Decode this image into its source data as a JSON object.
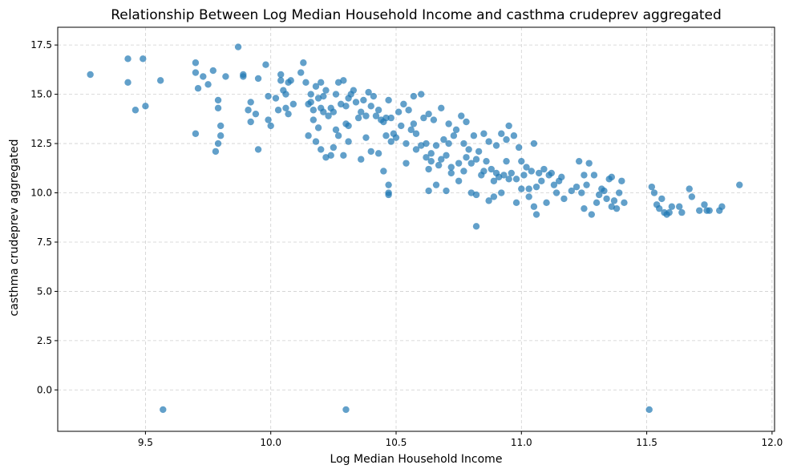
{
  "chart_data": {
    "type": "scatter",
    "title": "Relationship Between Log Median Household Income and casthma crudeprev aggregated",
    "xlabel": "Log Median Household Income",
    "ylabel": "casthma crudeprev aggregated",
    "xlim": [
      9.15,
      12.01
    ],
    "ylim": [
      -2.1,
      18.4
    ],
    "xticks": [
      9.5,
      10.0,
      10.5,
      11.0,
      11.5,
      12.0
    ],
    "xtick_labels": [
      "9.5",
      "10.0",
      "10.5",
      "11.0",
      "11.5",
      "12.0"
    ],
    "yticks": [
      0.0,
      2.5,
      5.0,
      7.5,
      10.0,
      12.5,
      15.0,
      17.5
    ],
    "ytick_labels": [
      "0.0",
      "2.5",
      "5.0",
      "7.5",
      "10.0",
      "12.5",
      "15.0",
      "17.5"
    ],
    "grid": true,
    "color": "#1f77b4",
    "points": [
      [
        9.28,
        16.0
      ],
      [
        9.43,
        16.8
      ],
      [
        9.49,
        16.8
      ],
      [
        9.43,
        15.6
      ],
      [
        9.46,
        14.2
      ],
      [
        9.5,
        14.4
      ],
      [
        9.56,
        15.7
      ],
      [
        9.57,
        -1.0
      ],
      [
        9.7,
        16.6
      ],
      [
        9.7,
        16.1
      ],
      [
        9.73,
        15.9
      ],
      [
        9.77,
        16.2
      ],
      [
        9.71,
        15.3
      ],
      [
        9.75,
        15.5
      ],
      [
        9.82,
        15.9
      ],
      [
        9.87,
        17.4
      ],
      [
        9.89,
        15.9
      ],
      [
        9.89,
        16.0
      ],
      [
        9.95,
        15.8
      ],
      [
        9.98,
        16.5
      ],
      [
        9.7,
        13.0
      ],
      [
        9.79,
        14.7
      ],
      [
        9.79,
        14.3
      ],
      [
        9.8,
        13.4
      ],
      [
        9.79,
        12.5
      ],
      [
        9.78,
        12.1
      ],
      [
        9.8,
        12.9
      ],
      [
        9.91,
        14.2
      ],
      [
        9.92,
        14.6
      ],
      [
        9.92,
        13.6
      ],
      [
        9.94,
        14.0
      ],
      [
        9.95,
        12.2
      ],
      [
        9.99,
        14.9
      ],
      [
        9.99,
        13.7
      ],
      [
        10.0,
        13.4
      ],
      [
        10.02,
        14.8
      ],
      [
        10.03,
        14.2
      ],
      [
        10.04,
        15.7
      ],
      [
        10.04,
        16.0
      ],
      [
        10.05,
        15.2
      ],
      [
        10.06,
        14.3
      ],
      [
        10.06,
        15.0
      ],
      [
        10.07,
        14.0
      ],
      [
        10.07,
        15.6
      ],
      [
        10.08,
        15.7
      ],
      [
        10.09,
        14.5
      ],
      [
        10.12,
        16.1
      ],
      [
        10.13,
        16.6
      ],
      [
        10.14,
        15.6
      ],
      [
        10.15,
        14.5
      ],
      [
        10.16,
        14.6
      ],
      [
        10.16,
        15.0
      ],
      [
        10.17,
        13.7
      ],
      [
        10.17,
        14.2
      ],
      [
        10.18,
        15.4
      ],
      [
        10.19,
        14.8
      ],
      [
        10.2,
        14.3
      ],
      [
        10.2,
        15.6
      ],
      [
        10.21,
        14.1
      ],
      [
        10.21,
        14.9
      ],
      [
        10.22,
        15.2
      ],
      [
        10.23,
        13.9
      ],
      [
        10.24,
        14.3
      ],
      [
        10.25,
        14.1
      ],
      [
        10.26,
        15.0
      ],
      [
        10.26,
        13.2
      ],
      [
        10.27,
        15.6
      ],
      [
        10.28,
        14.5
      ],
      [
        10.29,
        15.7
      ],
      [
        10.3,
        14.4
      ],
      [
        10.3,
        13.5
      ],
      [
        10.31,
        14.8
      ],
      [
        10.31,
        12.6
      ],
      [
        10.32,
        15.0
      ],
      [
        10.33,
        15.2
      ],
      [
        10.34,
        14.6
      ],
      [
        10.35,
        13.8
      ],
      [
        10.36,
        14.1
      ],
      [
        10.37,
        14.7
      ],
      [
        10.38,
        13.9
      ],
      [
        10.38,
        12.8
      ],
      [
        10.39,
        15.1
      ],
      [
        10.4,
        14.4
      ],
      [
        10.41,
        14.9
      ],
      [
        10.42,
        13.9
      ],
      [
        10.43,
        14.2
      ],
      [
        10.44,
        13.7
      ],
      [
        10.45,
        13.6
      ],
      [
        10.46,
        13.8
      ],
      [
        10.46,
        12.9
      ],
      [
        10.47,
        14.7
      ],
      [
        10.48,
        13.8
      ],
      [
        10.48,
        12.6
      ],
      [
        10.15,
        12.9
      ],
      [
        10.18,
        12.6
      ],
      [
        10.19,
        13.3
      ],
      [
        10.2,
        12.2
      ],
      [
        10.22,
        11.8
      ],
      [
        10.24,
        11.9
      ],
      [
        10.25,
        12.3
      ],
      [
        10.27,
        12.9
      ],
      [
        10.29,
        11.9
      ],
      [
        10.31,
        13.4
      ],
      [
        10.36,
        11.7
      ],
      [
        10.4,
        12.1
      ],
      [
        10.43,
        12.0
      ],
      [
        10.45,
        11.1
      ],
      [
        10.47,
        10.4
      ],
      [
        10.47,
        10.0
      ],
      [
        10.47,
        9.9
      ],
      [
        10.3,
        -1.0
      ],
      [
        10.49,
        13.0
      ],
      [
        10.5,
        12.8
      ],
      [
        10.51,
        14.1
      ],
      [
        10.52,
        13.4
      ],
      [
        10.53,
        14.5
      ],
      [
        10.54,
        12.5
      ],
      [
        10.54,
        11.5
      ],
      [
        10.55,
        14.2
      ],
      [
        10.56,
        13.2
      ],
      [
        10.57,
        14.9
      ],
      [
        10.57,
        13.5
      ],
      [
        10.58,
        12.2
      ],
      [
        10.58,
        13.0
      ],
      [
        10.6,
        15.0
      ],
      [
        10.6,
        12.4
      ],
      [
        10.61,
        13.8
      ],
      [
        10.62,
        12.5
      ],
      [
        10.62,
        11.8
      ],
      [
        10.63,
        14.0
      ],
      [
        10.63,
        11.2
      ],
      [
        10.64,
        12.0
      ],
      [
        10.64,
        11.6
      ],
      [
        10.65,
        13.7
      ],
      [
        10.66,
        12.4
      ],
      [
        10.67,
        11.4
      ],
      [
        10.68,
        14.3
      ],
      [
        10.68,
        11.7
      ],
      [
        10.69,
        12.7
      ],
      [
        10.7,
        11.9
      ],
      [
        10.71,
        13.5
      ],
      [
        10.71,
        12.5
      ],
      [
        10.72,
        11.3
      ],
      [
        10.73,
        12.9
      ],
      [
        10.74,
        13.2
      ],
      [
        10.75,
        11.5
      ],
      [
        10.76,
        13.9
      ],
      [
        10.77,
        12.5
      ],
      [
        10.77,
        11.1
      ],
      [
        10.78,
        13.6
      ],
      [
        10.79,
        12.2
      ],
      [
        10.8,
        11.5
      ],
      [
        10.81,
        12.9
      ],
      [
        10.82,
        11.7
      ],
      [
        10.83,
        12.1
      ],
      [
        10.84,
        10.9
      ],
      [
        10.85,
        13.0
      ],
      [
        10.86,
        11.6
      ],
      [
        10.87,
        12.6
      ],
      [
        10.88,
        11.2
      ],
      [
        10.89,
        10.6
      ],
      [
        10.9,
        12.4
      ],
      [
        10.9,
        11.0
      ],
      [
        10.91,
        10.8
      ],
      [
        10.92,
        13.0
      ],
      [
        10.93,
        10.9
      ],
      [
        10.94,
        12.7
      ],
      [
        10.94,
        11.6
      ],
      [
        10.95,
        13.4
      ],
      [
        10.96,
        11.0
      ],
      [
        10.97,
        12.9
      ],
      [
        10.98,
        10.7
      ],
      [
        10.99,
        12.3
      ],
      [
        11.0,
        11.6
      ],
      [
        11.01,
        10.9
      ],
      [
        11.02,
        11.3
      ],
      [
        11.03,
        10.2
      ],
      [
        11.04,
        11.1
      ],
      [
        11.05,
        12.5
      ],
      [
        11.06,
        10.3
      ],
      [
        11.07,
        11.0
      ],
      [
        11.08,
        10.6
      ],
      [
        11.09,
        11.2
      ],
      [
        11.1,
        9.5
      ],
      [
        11.11,
        10.9
      ],
      [
        11.12,
        11.0
      ],
      [
        11.13,
        10.4
      ],
      [
        11.14,
        10.0
      ],
      [
        11.15,
        10.6
      ],
      [
        11.16,
        10.8
      ],
      [
        11.17,
        9.7
      ],
      [
        10.63,
        10.1
      ],
      [
        10.66,
        10.4
      ],
      [
        10.7,
        10.1
      ],
      [
        10.72,
        11.0
      ],
      [
        10.75,
        10.6
      ],
      [
        10.78,
        11.8
      ],
      [
        10.8,
        10.0
      ],
      [
        10.82,
        9.9
      ],
      [
        10.85,
        11.1
      ],
      [
        10.87,
        9.6
      ],
      [
        10.89,
        9.8
      ],
      [
        10.92,
        10.0
      ],
      [
        10.95,
        10.7
      ],
      [
        10.98,
        9.5
      ],
      [
        11.0,
        10.2
      ],
      [
        11.03,
        9.8
      ],
      [
        11.05,
        9.3
      ],
      [
        11.06,
        8.9
      ],
      [
        10.82,
        8.3
      ],
      [
        11.2,
        10.1
      ],
      [
        11.22,
        10.3
      ],
      [
        11.23,
        11.6
      ],
      [
        11.24,
        10.0
      ],
      [
        11.25,
        10.9
      ],
      [
        11.25,
        9.2
      ],
      [
        11.26,
        10.4
      ],
      [
        11.27,
        11.5
      ],
      [
        11.28,
        8.9
      ],
      [
        11.29,
        10.9
      ],
      [
        11.3,
        9.5
      ],
      [
        11.31,
        9.9
      ],
      [
        11.32,
        10.2
      ],
      [
        11.33,
        10.1
      ],
      [
        11.34,
        9.7
      ],
      [
        11.35,
        10.7
      ],
      [
        11.36,
        9.3
      ],
      [
        11.36,
        10.8
      ],
      [
        11.37,
        9.6
      ],
      [
        11.38,
        9.2
      ],
      [
        11.39,
        10.0
      ],
      [
        11.4,
        10.6
      ],
      [
        11.41,
        9.5
      ],
      [
        11.52,
        10.3
      ],
      [
        11.53,
        10.0
      ],
      [
        11.54,
        9.4
      ],
      [
        11.55,
        9.2
      ],
      [
        11.56,
        9.7
      ],
      [
        11.57,
        9.0
      ],
      [
        11.58,
        8.9
      ],
      [
        11.59,
        9.0
      ],
      [
        11.6,
        9.3
      ],
      [
        11.63,
        9.3
      ],
      [
        11.64,
        9.0
      ],
      [
        11.67,
        10.2
      ],
      [
        11.68,
        9.8
      ],
      [
        11.71,
        9.1
      ],
      [
        11.73,
        9.4
      ],
      [
        11.74,
        9.1
      ],
      [
        11.75,
        9.1
      ],
      [
        11.79,
        9.1
      ],
      [
        11.8,
        9.3
      ],
      [
        11.87,
        10.4
      ],
      [
        11.51,
        -1.0
      ]
    ]
  }
}
